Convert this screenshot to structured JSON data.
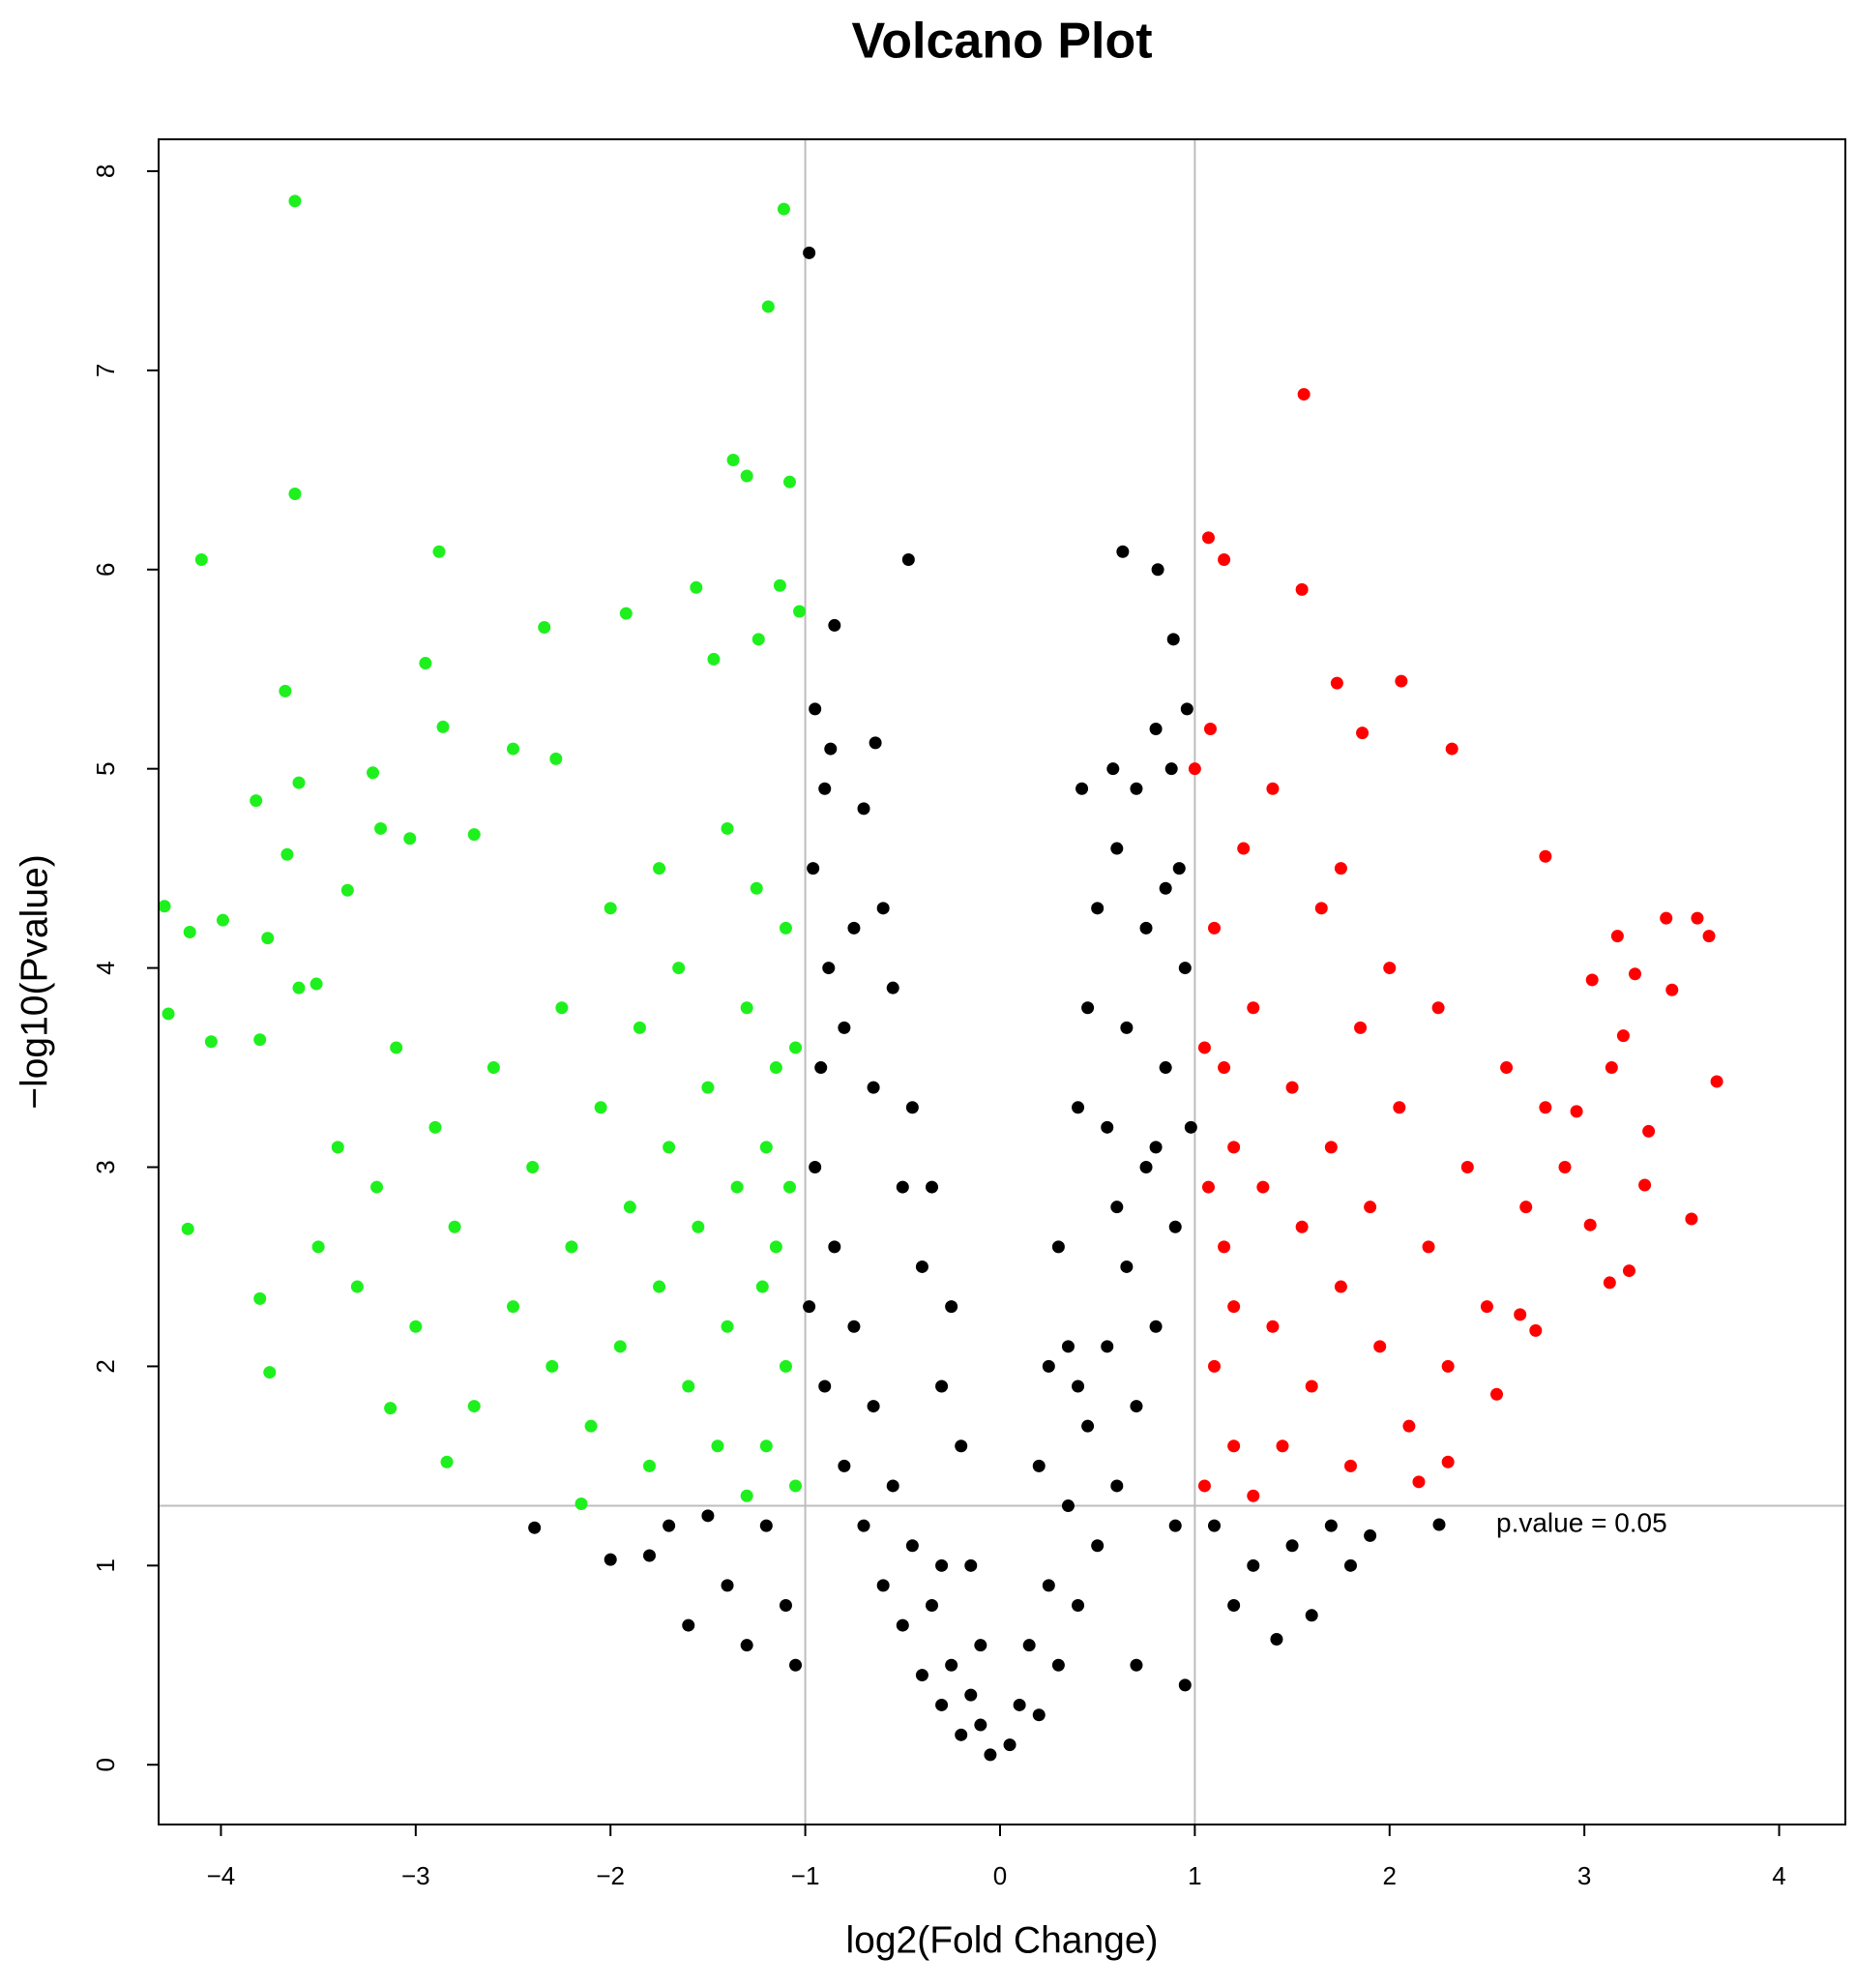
{
  "chart_data": {
    "type": "scatter",
    "title": "Volcano Plot",
    "x_label": "log2(Fold Change)",
    "y_label": "−log10(Pvalue)",
    "xlim": [
      -4.32,
      4.34
    ],
    "ylim": [
      -0.3,
      8.16
    ],
    "xticks": [
      {
        "value": -4,
        "label": "−4"
      },
      {
        "value": -3,
        "label": "−3"
      },
      {
        "value": -2,
        "label": "−2"
      },
      {
        "value": -1,
        "label": "−1"
      },
      0,
      1,
      2,
      3,
      4
    ],
    "yticks": [
      0,
      1,
      2,
      3,
      4,
      5,
      6,
      7,
      8
    ],
    "vlines": [
      -1,
      1
    ],
    "hlines": [
      1.3
    ],
    "line_color": "#bdbdbd",
    "legend": {
      "label": "p.value = 0.05",
      "color": "#000000"
    },
    "series": [
      {
        "color": "#000000",
        "x": [
          -0.05,
          -0.1,
          -0.15,
          -0.2,
          -0.25,
          -0.3,
          -0.35,
          -0.4,
          -0.45,
          -0.5,
          -0.55,
          -0.6,
          -0.65,
          -0.7,
          -0.75,
          -0.8,
          -0.85,
          -0.9,
          -0.95,
          -0.98,
          -0.92,
          -0.88,
          -0.96,
          -0.9,
          -0.7,
          -0.75,
          -0.6,
          -0.55,
          -0.45,
          -0.35,
          -0.25,
          -0.2,
          -0.3,
          -0.4,
          -0.5,
          -0.65,
          -0.8,
          -0.3,
          -0.1,
          -0.15,
          -1.2,
          -1.4,
          -1.6,
          -1.3,
          -1.1,
          -1.05,
          -1.5,
          -1.7,
          -1.8,
          -2.0,
          -2.39,
          -0.98,
          -0.47,
          -0.85,
          -0.64,
          -0.95,
          -0.87,
          0.05,
          0.1,
          0.15,
          0.2,
          0.25,
          0.3,
          0.35,
          0.4,
          0.45,
          0.5,
          0.55,
          0.6,
          0.65,
          0.7,
          0.75,
          0.8,
          0.85,
          0.9,
          0.95,
          0.98,
          0.92,
          0.88,
          0.96,
          0.8,
          0.7,
          0.6,
          0.5,
          0.45,
          0.4,
          0.3,
          0.25,
          0.35,
          0.55,
          0.65,
          0.75,
          0.85,
          0.2,
          0.4,
          0.6,
          0.8,
          0.9,
          0.95,
          0.7,
          1.1,
          1.3,
          1.5,
          1.7,
          1.8,
          1.2,
          1.42,
          1.6,
          1.9,
          0.63,
          0.81,
          0.89,
          0.58,
          0.42
        ],
        "values": [
          0.05,
          0.2,
          0.35,
          0.15,
          0.5,
          0.3,
          0.8,
          0.45,
          1.1,
          0.7,
          1.4,
          0.9,
          1.8,
          1.2,
          2.2,
          1.5,
          2.6,
          1.9,
          3.0,
          2.3,
          3.5,
          4.0,
          4.5,
          4.9,
          4.8,
          4.2,
          4.3,
          3.9,
          3.3,
          2.9,
          2.3,
          1.6,
          1.9,
          2.5,
          2.9,
          3.4,
          3.7,
          1.0,
          0.6,
          1.0,
          1.2,
          0.9,
          0.7,
          0.6,
          0.8,
          0.5,
          1.25,
          1.2,
          1.05,
          1.03,
          1.19,
          7.59,
          6.05,
          5.72,
          5.13,
          5.3,
          5.1,
          0.1,
          0.3,
          0.6,
          0.25,
          0.9,
          0.5,
          1.3,
          0.8,
          1.7,
          1.1,
          2.1,
          1.4,
          2.5,
          1.8,
          3.0,
          2.2,
          3.5,
          2.7,
          4.0,
          3.2,
          4.5,
          5.0,
          5.3,
          5.2,
          4.9,
          4.6,
          4.3,
          3.8,
          3.3,
          2.6,
          2.0,
          2.1,
          3.2,
          3.7,
          4.2,
          4.4,
          1.5,
          1.9,
          2.8,
          3.1,
          1.2,
          0.4,
          0.5,
          1.2,
          1.0,
          1.1,
          1.2,
          1.0,
          0.8,
          0.63,
          0.75,
          1.15,
          6.09,
          6.0,
          5.65,
          5.0,
          4.9
        ]
      },
      {
        "color": "#1ef01e",
        "x": [
          -3.62,
          -1.11,
          -1.19,
          -1.37,
          -1.3,
          -1.08,
          -3.62,
          -4.1,
          -2.88,
          -1.56,
          -1.13,
          -1.03,
          -1.92,
          -2.34,
          -2.95,
          -3.67,
          -1.47,
          -1.24,
          -2.86,
          -2.5,
          -2.28,
          -3.22,
          -3.6,
          -3.82,
          -4.29,
          -3.99,
          -4.16,
          -4.27,
          -4.05,
          -3.8,
          -4.17,
          -3.8,
          -3.75,
          -3.18,
          -3.03,
          -2.7,
          -3.51,
          -3.66,
          -3.76,
          -3.35,
          -1.05,
          -1.1,
          -1.15,
          -1.2,
          -1.05,
          -1.1,
          -1.25,
          -1.3,
          -1.35,
          -1.4,
          -1.45,
          -1.5,
          -1.55,
          -1.6,
          -1.65,
          -1.7,
          -1.75,
          -1.8,
          -1.85,
          -1.9,
          -1.95,
          -2.0,
          -2.05,
          -2.1,
          -2.2,
          -2.25,
          -2.3,
          -2.4,
          -2.5,
          -2.6,
          -2.7,
          -2.8,
          -2.9,
          -3.0,
          -3.1,
          -3.2,
          -3.3,
          -3.4,
          -3.5,
          -3.6,
          -1.2,
          -1.3,
          -1.15,
          -1.4,
          -1.75,
          -2.84,
          -3.13,
          -2.15,
          -1.22,
          -1.08
        ],
        "values": [
          7.85,
          7.81,
          7.32,
          6.55,
          6.47,
          6.44,
          6.38,
          6.05,
          6.09,
          5.91,
          5.92,
          5.79,
          5.78,
          5.71,
          5.53,
          5.39,
          5.55,
          5.65,
          5.21,
          5.1,
          5.05,
          4.98,
          4.93,
          4.84,
          4.31,
          4.24,
          4.18,
          3.77,
          3.63,
          3.64,
          2.69,
          2.34,
          1.97,
          4.7,
          4.65,
          4.67,
          3.92,
          4.57,
          4.15,
          4.39,
          1.4,
          2.0,
          2.6,
          3.1,
          3.6,
          4.2,
          4.4,
          3.8,
          2.9,
          2.2,
          1.6,
          3.4,
          2.7,
          1.9,
          4.0,
          3.1,
          2.4,
          1.5,
          3.7,
          2.8,
          2.1,
          4.3,
          3.3,
          1.7,
          2.6,
          3.8,
          2.0,
          3.0,
          2.3,
          3.5,
          1.8,
          2.7,
          3.2,
          2.2,
          3.6,
          2.9,
          2.4,
          3.1,
          2.6,
          3.9,
          1.6,
          1.35,
          3.5,
          4.7,
          4.5,
          1.52,
          1.79,
          1.31,
          2.4,
          2.9
        ]
      },
      {
        "color": "#ff0000",
        "x": [
          1.56,
          1.07,
          1.15,
          1.55,
          2.06,
          2.32,
          3.42,
          3.58,
          3.64,
          3.68,
          3.55,
          3.23,
          3.13,
          3.31,
          3.33,
          3.03,
          2.75,
          2.55,
          2.3,
          2.15,
          2.8,
          3.17,
          3.26,
          3.45,
          3.04,
          3.2,
          2.96,
          3.14,
          2.67,
          1.73,
          1.86,
          1.05,
          1.1,
          1.15,
          1.2,
          1.05,
          1.1,
          1.25,
          1.3,
          1.35,
          1.4,
          1.45,
          1.5,
          1.55,
          1.6,
          1.65,
          1.7,
          1.75,
          1.8,
          1.85,
          1.9,
          1.95,
          2.0,
          2.05,
          2.1,
          2.2,
          2.25,
          2.3,
          2.4,
          2.5,
          2.6,
          2.7,
          2.8,
          2.9,
          1.2,
          1.3,
          1.15,
          1.4,
          1.75,
          1.0,
          1.08,
          1.2,
          1.07
        ],
        "values": [
          6.88,
          6.16,
          6.05,
          5.9,
          5.44,
          5.1,
          4.25,
          4.25,
          4.16,
          3.43,
          2.74,
          2.48,
          2.42,
          2.91,
          3.18,
          2.71,
          2.18,
          1.86,
          1.52,
          1.42,
          4.56,
          4.16,
          3.97,
          3.89,
          3.94,
          3.66,
          3.28,
          3.5,
          2.26,
          5.43,
          5.18,
          1.4,
          2.0,
          2.6,
          3.1,
          3.6,
          4.2,
          4.6,
          3.8,
          2.9,
          2.2,
          1.6,
          3.4,
          2.7,
          1.9,
          4.3,
          3.1,
          2.4,
          1.5,
          3.7,
          2.8,
          2.1,
          4.0,
          3.3,
          1.7,
          2.6,
          3.8,
          2.0,
          3.0,
          2.3,
          3.5,
          2.8,
          3.3,
          3.0,
          1.6,
          1.35,
          3.5,
          4.9,
          4.5,
          5.0,
          5.2,
          2.3,
          2.9
        ]
      }
    ]
  }
}
